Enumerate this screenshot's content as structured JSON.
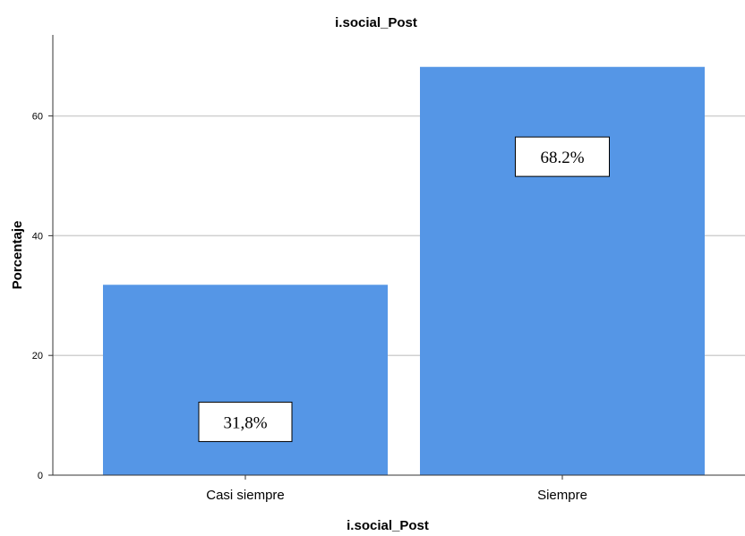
{
  "chart_data": {
    "type": "bar",
    "title": "i.social_Post",
    "xlabel": "i.social_Post",
    "ylabel": "Porcentaje",
    "categories": [
      "Casi siempre",
      "Siempre"
    ],
    "values": [
      31.8,
      68.2
    ],
    "data_labels": [
      "31,8%",
      "68.2%"
    ],
    "ylim": [
      0,
      72
    ],
    "yticks": [
      0,
      20,
      40,
      60
    ],
    "grid": true,
    "bar_color": "#5596e6"
  }
}
